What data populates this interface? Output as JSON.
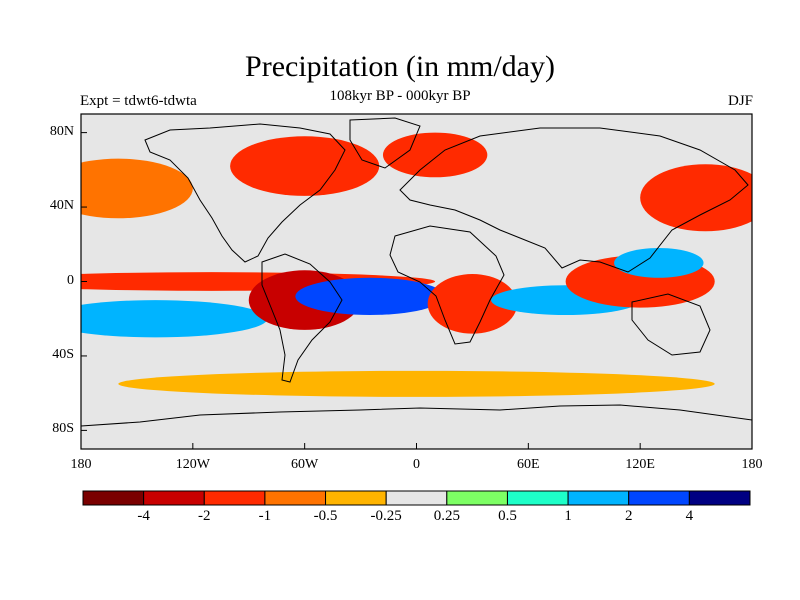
{
  "title": "Precipitation (in mm/day)",
  "subtitle_left": "Expt = tdwt6-tdwta",
  "subtitle_center": "108kyr BP - 000kyr BP",
  "subtitle_right": "DJF",
  "map": {
    "background_color": "#e6e6e6",
    "lon_range": [
      -180,
      180
    ],
    "lat_range": [
      -90,
      90
    ],
    "lat_ticks": [
      {
        "value": 80,
        "label": "80N"
      },
      {
        "value": 40,
        "label": "40N"
      },
      {
        "value": 0,
        "label": "0"
      },
      {
        "value": -40,
        "label": "40S"
      },
      {
        "value": -80,
        "label": "80S"
      }
    ],
    "lon_ticks": [
      {
        "value": -180,
        "label": "180"
      },
      {
        "value": -120,
        "label": "120W"
      },
      {
        "value": -60,
        "label": "60W"
      },
      {
        "value": 0,
        "label": "0"
      },
      {
        "value": 60,
        "label": "60E"
      },
      {
        "value": 120,
        "label": "120E"
      },
      {
        "value": 180,
        "label": "180"
      }
    ]
  },
  "colorbar": {
    "colors": [
      "#7a0000",
      "#c80000",
      "#ff2a00",
      "#ff7300",
      "#ffb400",
      "#e6e6e6",
      "#7dff64",
      "#1effc8",
      "#00b4ff",
      "#0046ff",
      "#000082"
    ],
    "labels": [
      "-4",
      "-2",
      "-1",
      "-0.5",
      "-0.25",
      "0.25",
      "0.5",
      "1",
      "2",
      "4"
    ]
  },
  "chart_data": {
    "type": "heatmap",
    "title": "Precipitation (in mm/day)",
    "units": "mm/day",
    "xlim": [
      -180,
      180
    ],
    "ylim": [
      -90,
      90
    ],
    "levels": [
      -4,
      -2,
      -1,
      -0.5,
      -0.25,
      0.25,
      0.5,
      1,
      2,
      4
    ],
    "regions": [
      {
        "lon": -60,
        "lat": 62,
        "w": 40,
        "h": 16,
        "value": -1.5
      },
      {
        "lon": 10,
        "lat": 68,
        "w": 28,
        "h": 12,
        "value": -1.5
      },
      {
        "lon": -160,
        "lat": 50,
        "w": 40,
        "h": 16,
        "value": -0.7
      },
      {
        "lon": 155,
        "lat": 45,
        "w": 35,
        "h": 18,
        "value": -1.5
      },
      {
        "lon": -110,
        "lat": 0,
        "w": 120,
        "h": 5,
        "value": -1.5
      },
      {
        "lon": -140,
        "lat": -20,
        "w": 60,
        "h": 10,
        "value": 1.5
      },
      {
        "lon": -60,
        "lat": -10,
        "w": 30,
        "h": 16,
        "value": -2.5
      },
      {
        "lon": -25,
        "lat": -8,
        "w": 40,
        "h": 10,
        "value": 3
      },
      {
        "lon": 30,
        "lat": -12,
        "w": 24,
        "h": 16,
        "value": -1.5
      },
      {
        "lon": 80,
        "lat": -10,
        "w": 40,
        "h": 8,
        "value": 1.5
      },
      {
        "lon": 120,
        "lat": 0,
        "w": 40,
        "h": 14,
        "value": -1.5
      },
      {
        "lon": 130,
        "lat": 10,
        "w": 24,
        "h": 8,
        "value": 1.5
      },
      {
        "lon": 0,
        "lat": -55,
        "w": 160,
        "h": 7,
        "value": -0.3
      }
    ]
  }
}
